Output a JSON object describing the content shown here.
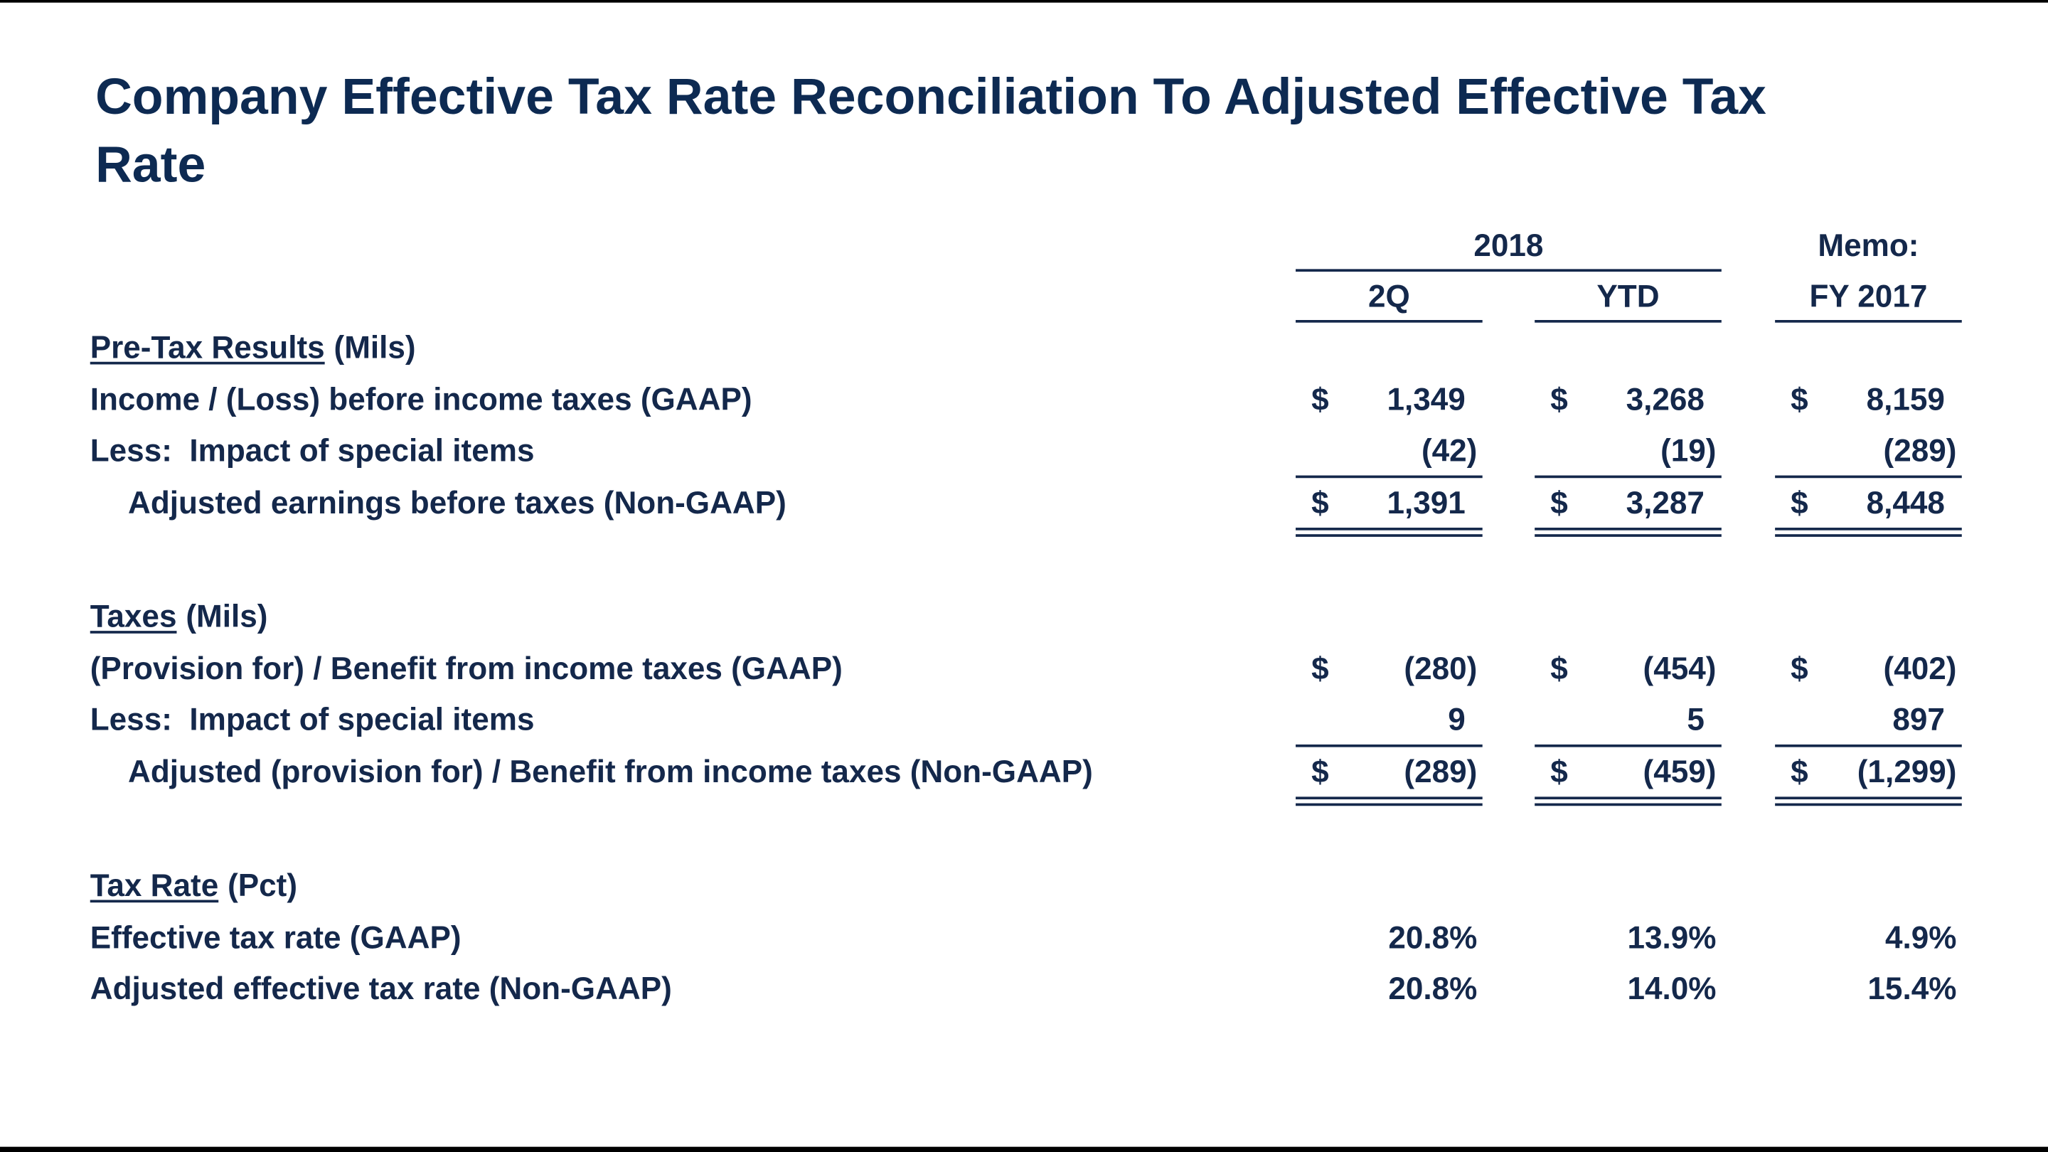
{
  "title": "Company Effective Tax Rate Reconciliation To Adjusted Effective Tax Rate",
  "header": {
    "group": "2018",
    "memo": "Memo:",
    "columns": [
      "2Q",
      "YTD",
      "FY 2017"
    ]
  },
  "sections": [
    {
      "heading": "Pre-Tax Results",
      "unit": "(Mils)",
      "rows": [
        {
          "label": "Income / (Loss) before income taxes (GAAP)",
          "cells": [
            {
              "currency": "$",
              "value": "1,349"
            },
            {
              "currency": "$",
              "value": "3,268"
            },
            {
              "currency": "$",
              "value": "8,159"
            }
          ]
        },
        {
          "label": "Less:  Impact of special items",
          "cells": [
            {
              "value": "(42)"
            },
            {
              "value": "(19)"
            },
            {
              "value": "(289)"
            }
          ]
        },
        {
          "label": "Adjusted earnings before taxes (Non-GAAP)",
          "cells": [
            {
              "currency": "$",
              "value": "1,391"
            },
            {
              "currency": "$",
              "value": "3,287"
            },
            {
              "currency": "$",
              "value": "8,448"
            }
          ]
        }
      ]
    },
    {
      "heading": "Taxes",
      "unit": "(Mils)",
      "rows": [
        {
          "label": "(Provision for) / Benefit from income taxes (GAAP)",
          "cells": [
            {
              "currency": "$",
              "value": "(280)"
            },
            {
              "currency": "$",
              "value": "(454)"
            },
            {
              "currency": "$",
              "value": "(402)"
            }
          ]
        },
        {
          "label": "Less:  Impact of special items",
          "cells": [
            {
              "value": "9"
            },
            {
              "value": "5"
            },
            {
              "value": "897"
            }
          ]
        },
        {
          "label": "Adjusted (provision for) / Benefit from income taxes (Non-GAAP)",
          "cells": [
            {
              "currency": "$",
              "value": "(289)"
            },
            {
              "currency": "$",
              "value": "(459)"
            },
            {
              "currency": "$",
              "value": "(1,299)"
            }
          ]
        }
      ]
    },
    {
      "heading": "Tax Rate",
      "unit": "(Pct)",
      "rows": [
        {
          "label": "Effective tax rate (GAAP)",
          "cells": [
            {
              "value": "20.8%"
            },
            {
              "value": "13.9%"
            },
            {
              "value": "4.9%"
            }
          ]
        },
        {
          "label": "Adjusted effective tax rate (Non-GAAP)",
          "cells": [
            {
              "value": "20.8%"
            },
            {
              "value": "14.0%"
            },
            {
              "value": "15.4%"
            }
          ]
        }
      ]
    }
  ]
}
